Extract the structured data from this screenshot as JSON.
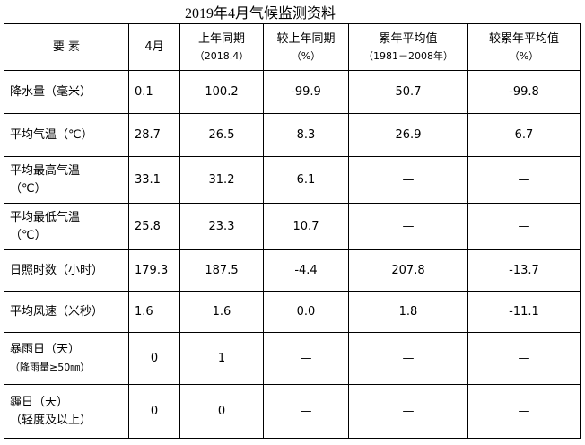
{
  "title": "2019年4月气候监测资料",
  "headers": {
    "item": "要  素",
    "april": "4月",
    "last_year": "上年同期",
    "last_year_sub": "（2018.4）",
    "vs_last_year": "较上年同期",
    "vs_last_year_sub": "（%）",
    "normal": "累年平均值",
    "normal_sub": "（1981－2008年）",
    "vs_normal": "较累年平均值",
    "vs_normal_sub": "（%）"
  },
  "rows": [
    {
      "label": "降水量（毫米）",
      "label2": "",
      "april": "0.1",
      "last_year": "100.2",
      "vs_last": "-99.9",
      "normal": "50.7",
      "vs_normal": "-99.8"
    },
    {
      "label": "平均气温（℃）",
      "label2": "",
      "april": "28.7",
      "last_year": "26.5",
      "vs_last": "8.3",
      "normal": "26.9",
      "vs_normal": "6.7"
    },
    {
      "label": "平均最高气温",
      "label2": "（℃）",
      "april": "33.1",
      "last_year": "31.2",
      "vs_last": "6.1",
      "normal": "—",
      "vs_normal": "—"
    },
    {
      "label": "平均最低气温",
      "label2": "（℃）",
      "april": "25.8",
      "last_year": "23.3",
      "vs_last": "10.7",
      "normal": "—",
      "vs_normal": "—"
    },
    {
      "label": "日照时数（小时）",
      "label2": "",
      "april": "179.3",
      "last_year": "187.5",
      "vs_last": "-4.4",
      "normal": "207.8",
      "vs_normal": "-13.7"
    },
    {
      "label": "平均风速（米秒）",
      "label2": "",
      "april": "1.6",
      "last_year": "1.6",
      "vs_last": "0.0",
      "normal": "1.8",
      "vs_normal": "-11.1"
    },
    {
      "label": "暴雨日（天）",
      "label2": "（降雨量≥50㎜）",
      "april": "0",
      "last_year": "1",
      "vs_last": "—",
      "normal": "—",
      "vs_normal": "—"
    },
    {
      "label": "霾日（天）",
      "label2": "（轻度及以上）",
      "april": "0",
      "last_year": "0",
      "vs_last": "—",
      "normal": "—",
      "vs_normal": "—"
    }
  ]
}
